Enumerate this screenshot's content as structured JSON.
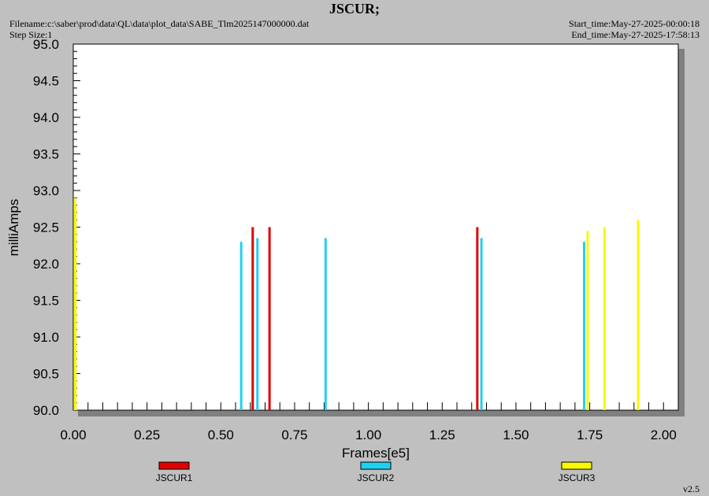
{
  "header": {
    "title": "JSCUR;",
    "filename": "Filename:c:\\saber\\prod\\data\\QL\\data\\plot_data\\SABE_Tlm2025147000000.dat",
    "step_size": "Step Size:1",
    "start_time": "Start_time:May-27-2025-00:00:18",
    "end_time": "End_time:May-27-2025-17:58:13",
    "version": "v2.5"
  },
  "chart_data": {
    "type": "bar",
    "title": "JSCUR;",
    "xlabel": "Frames[e5]",
    "ylabel": "milliAmps",
    "xlim": [
      0.0,
      2.05
    ],
    "ylim": [
      90.0,
      95.0
    ],
    "x_ticks": [
      "0.00",
      "0.25",
      "0.50",
      "0.75",
      "1.00",
      "1.25",
      "1.50",
      "1.75",
      "2.00"
    ],
    "y_ticks": [
      "90.0",
      "90.5",
      "91.0",
      "91.5",
      "92.0",
      "92.5",
      "93.0",
      "93.5",
      "94.0",
      "94.5",
      "95.0"
    ],
    "legend_position": "bottom",
    "series": [
      {
        "name": "JSCUR1",
        "color": "#e00000",
        "x": [
          0.608,
          0.665,
          1.369
        ],
        "y": [
          92.5,
          92.5,
          92.5
        ]
      },
      {
        "name": "JSCUR2",
        "color": "#20d0f0",
        "x": [
          0.569,
          0.624,
          0.855,
          1.383,
          1.731
        ],
        "y": [
          92.3,
          92.35,
          92.35,
          92.35,
          92.3
        ]
      },
      {
        "name": "JSCUR3",
        "color": "#f8f800",
        "x": [
          0.005,
          0.007,
          1.743,
          1.8,
          1.914
        ],
        "y": [
          92.9,
          92.8,
          92.45,
          92.5,
          92.6
        ]
      }
    ]
  }
}
